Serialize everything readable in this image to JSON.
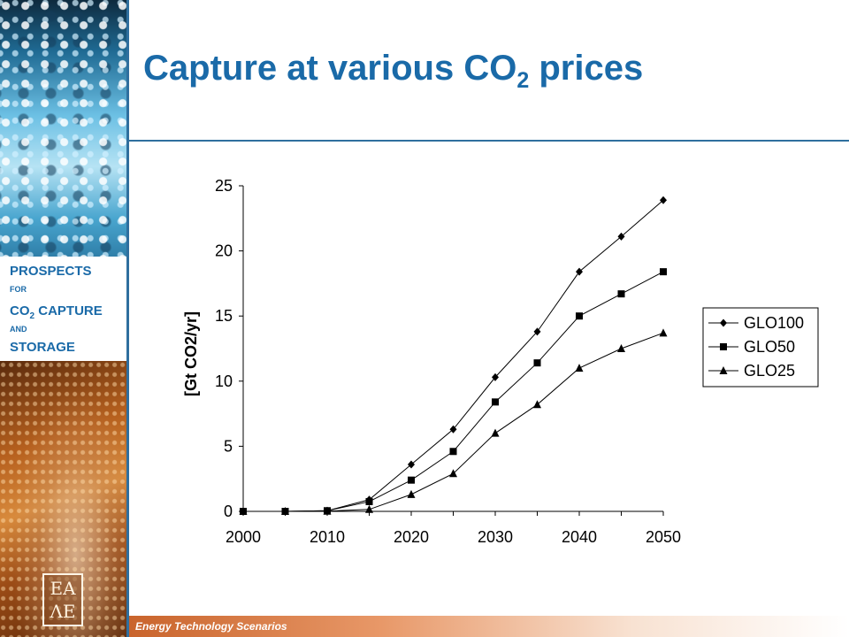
{
  "slide": {
    "title_main": "Capture at various CO",
    "title_sub": "2",
    "title_end": " prices",
    "footer": "Energy Technology Scenarios"
  },
  "sidebar": {
    "line1": "PROSPECTS",
    "line2": "FOR",
    "line3_main": "CO",
    "line3_sub": "2",
    "line3_end": " CAPTURE",
    "line4": "AND",
    "line5": "STORAGE"
  },
  "colors": {
    "brand_blue": "#1a6aa8",
    "rule_blue": "#2f6f9e",
    "footer_orange": "#c9642c"
  },
  "chart_data": {
    "type": "line",
    "ylabel": "[Gt CO2/yr]",
    "x": [
      2000,
      2005,
      2010,
      2015,
      2020,
      2025,
      2030,
      2035,
      2040,
      2045,
      2050
    ],
    "xticks": [
      2000,
      2010,
      2020,
      2030,
      2040,
      2050
    ],
    "yticks": [
      0,
      5,
      10,
      15,
      20,
      25
    ],
    "xlim": [
      2000,
      2050
    ],
    "ylim": [
      0,
      25
    ],
    "grid": false,
    "legend_position": "right",
    "series": [
      {
        "name": "GLO100",
        "marker": "diamond",
        "values": [
          0,
          0,
          0.05,
          0.9,
          3.6,
          6.3,
          10.3,
          13.8,
          18.4,
          21.1,
          23.9
        ]
      },
      {
        "name": "GLO50",
        "marker": "square",
        "values": [
          0,
          0,
          0.05,
          0.75,
          2.4,
          4.6,
          8.4,
          11.4,
          15.0,
          16.7,
          18.4
        ]
      },
      {
        "name": "GLO25",
        "marker": "triangle",
        "values": [
          0,
          0,
          0.02,
          0.15,
          1.3,
          2.9,
          6.0,
          8.2,
          11.0,
          12.5,
          13.7
        ]
      }
    ]
  }
}
